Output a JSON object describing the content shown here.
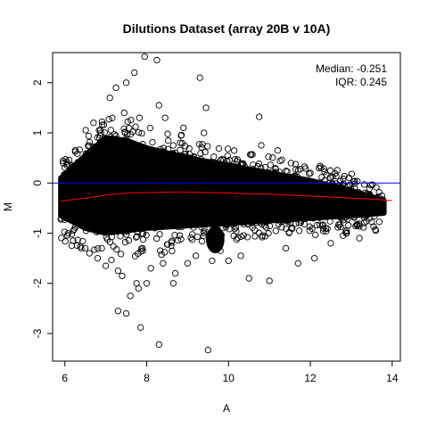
{
  "chart_data": {
    "type": "scatter",
    "title": "Dilutions Dataset (array 20B v 10A)",
    "xlabel": "A",
    "ylabel": "M",
    "xlim": [
      5.7,
      14.2
    ],
    "ylim": [
      -3.55,
      2.6
    ],
    "x_ticks": [
      6,
      8,
      10,
      12,
      14
    ],
    "y_ticks": [
      -3,
      -2,
      -1,
      0,
      1,
      2
    ],
    "annotations": {
      "median": "Median: -0.251",
      "iqr": "IQR: 0.245"
    },
    "reference_line": {
      "y": 0,
      "color": "#0000ff"
    },
    "loess_curve": {
      "color": "#ff0000",
      "x": [
        5.9,
        6.5,
        7.0,
        7.5,
        8.0,
        8.5,
        9.0,
        9.5,
        10.0,
        10.5,
        11.0,
        11.5,
        12.0,
        12.5,
        13.0,
        13.5,
        14.0
      ],
      "y": [
        -0.36,
        -0.3,
        -0.24,
        -0.2,
        -0.19,
        -0.18,
        -0.18,
        -0.19,
        -0.2,
        -0.21,
        -0.22,
        -0.24,
        -0.26,
        -0.28,
        -0.3,
        -0.32,
        -0.35
      ]
    },
    "dense_cloud": {
      "x": [
        5.9,
        6.5,
        7.0,
        7.5,
        8.0,
        9.0,
        10.0,
        11.0,
        12.0,
        13.0,
        13.8
      ],
      "upper": [
        0.1,
        0.55,
        0.9,
        0.85,
        0.7,
        0.5,
        0.35,
        0.2,
        0.05,
        -0.15,
        -0.35
      ],
      "lower": [
        -0.65,
        -0.9,
        -1.0,
        -0.95,
        -0.9,
        -0.85,
        -0.8,
        -0.75,
        -0.7,
        -0.65,
        -0.6
      ]
    },
    "outliers": {
      "x": [
        7.95,
        8.25,
        9.3,
        8.3,
        9.45,
        7.7,
        7.25,
        7.5,
        10.75,
        7.1,
        11.2,
        6.05,
        6.9,
        7.4,
        8.1,
        8.4,
        7.8,
        7.6,
        12.1,
        11.7,
        6.3,
        10.0,
        9.6,
        9.8,
        9.2,
        8.7,
        10.5,
        11.0,
        12.5,
        13.2,
        6.8,
        7.3,
        6.6,
        8.0,
        9.0,
        6.2,
        7.0,
        6.4,
        7.9,
        8.6,
        10.3,
        11.4,
        12.8,
        13.6,
        8.9,
        9.4,
        10.8,
        6.7,
        7.45,
        8.45
      ],
      "y": [
        2.52,
        2.45,
        2.1,
        1.55,
        1.5,
        2.2,
        1.9,
        2.0,
        1.32,
        1.7,
        0.65,
        0.35,
        -1.3,
        -1.85,
        -1.7,
        -1.6,
        -2.1,
        -2.25,
        -1.5,
        -1.6,
        -1.25,
        -1.55,
        -1.55,
        -1.35,
        -1.45,
        -1.8,
        -1.9,
        -1.95,
        -1.2,
        -1.1,
        -1.5,
        -1.75,
        -1.4,
        -2.0,
        -1.6,
        -1.15,
        -1.65,
        -1.3,
        -1.3,
        -1.25,
        -1.45,
        -1.3,
        -1.05,
        -0.95,
        1.1,
        1.0,
        0.75,
        1.2,
        1.4,
        1.3
      ]
    },
    "extreme_points": {
      "x": [
        7.3,
        7.5,
        7.85,
        8.3,
        9.5,
        7.75,
        8.65
      ],
      "y": [
        -2.55,
        -2.6,
        -2.88,
        -3.22,
        -3.33,
        -2.0,
        -2.0
      ]
    },
    "cluster_low": {
      "x_range": [
        9.45,
        9.9
      ],
      "y_range": [
        -1.4,
        -0.85
      ]
    },
    "grid": false,
    "legend": "none"
  }
}
